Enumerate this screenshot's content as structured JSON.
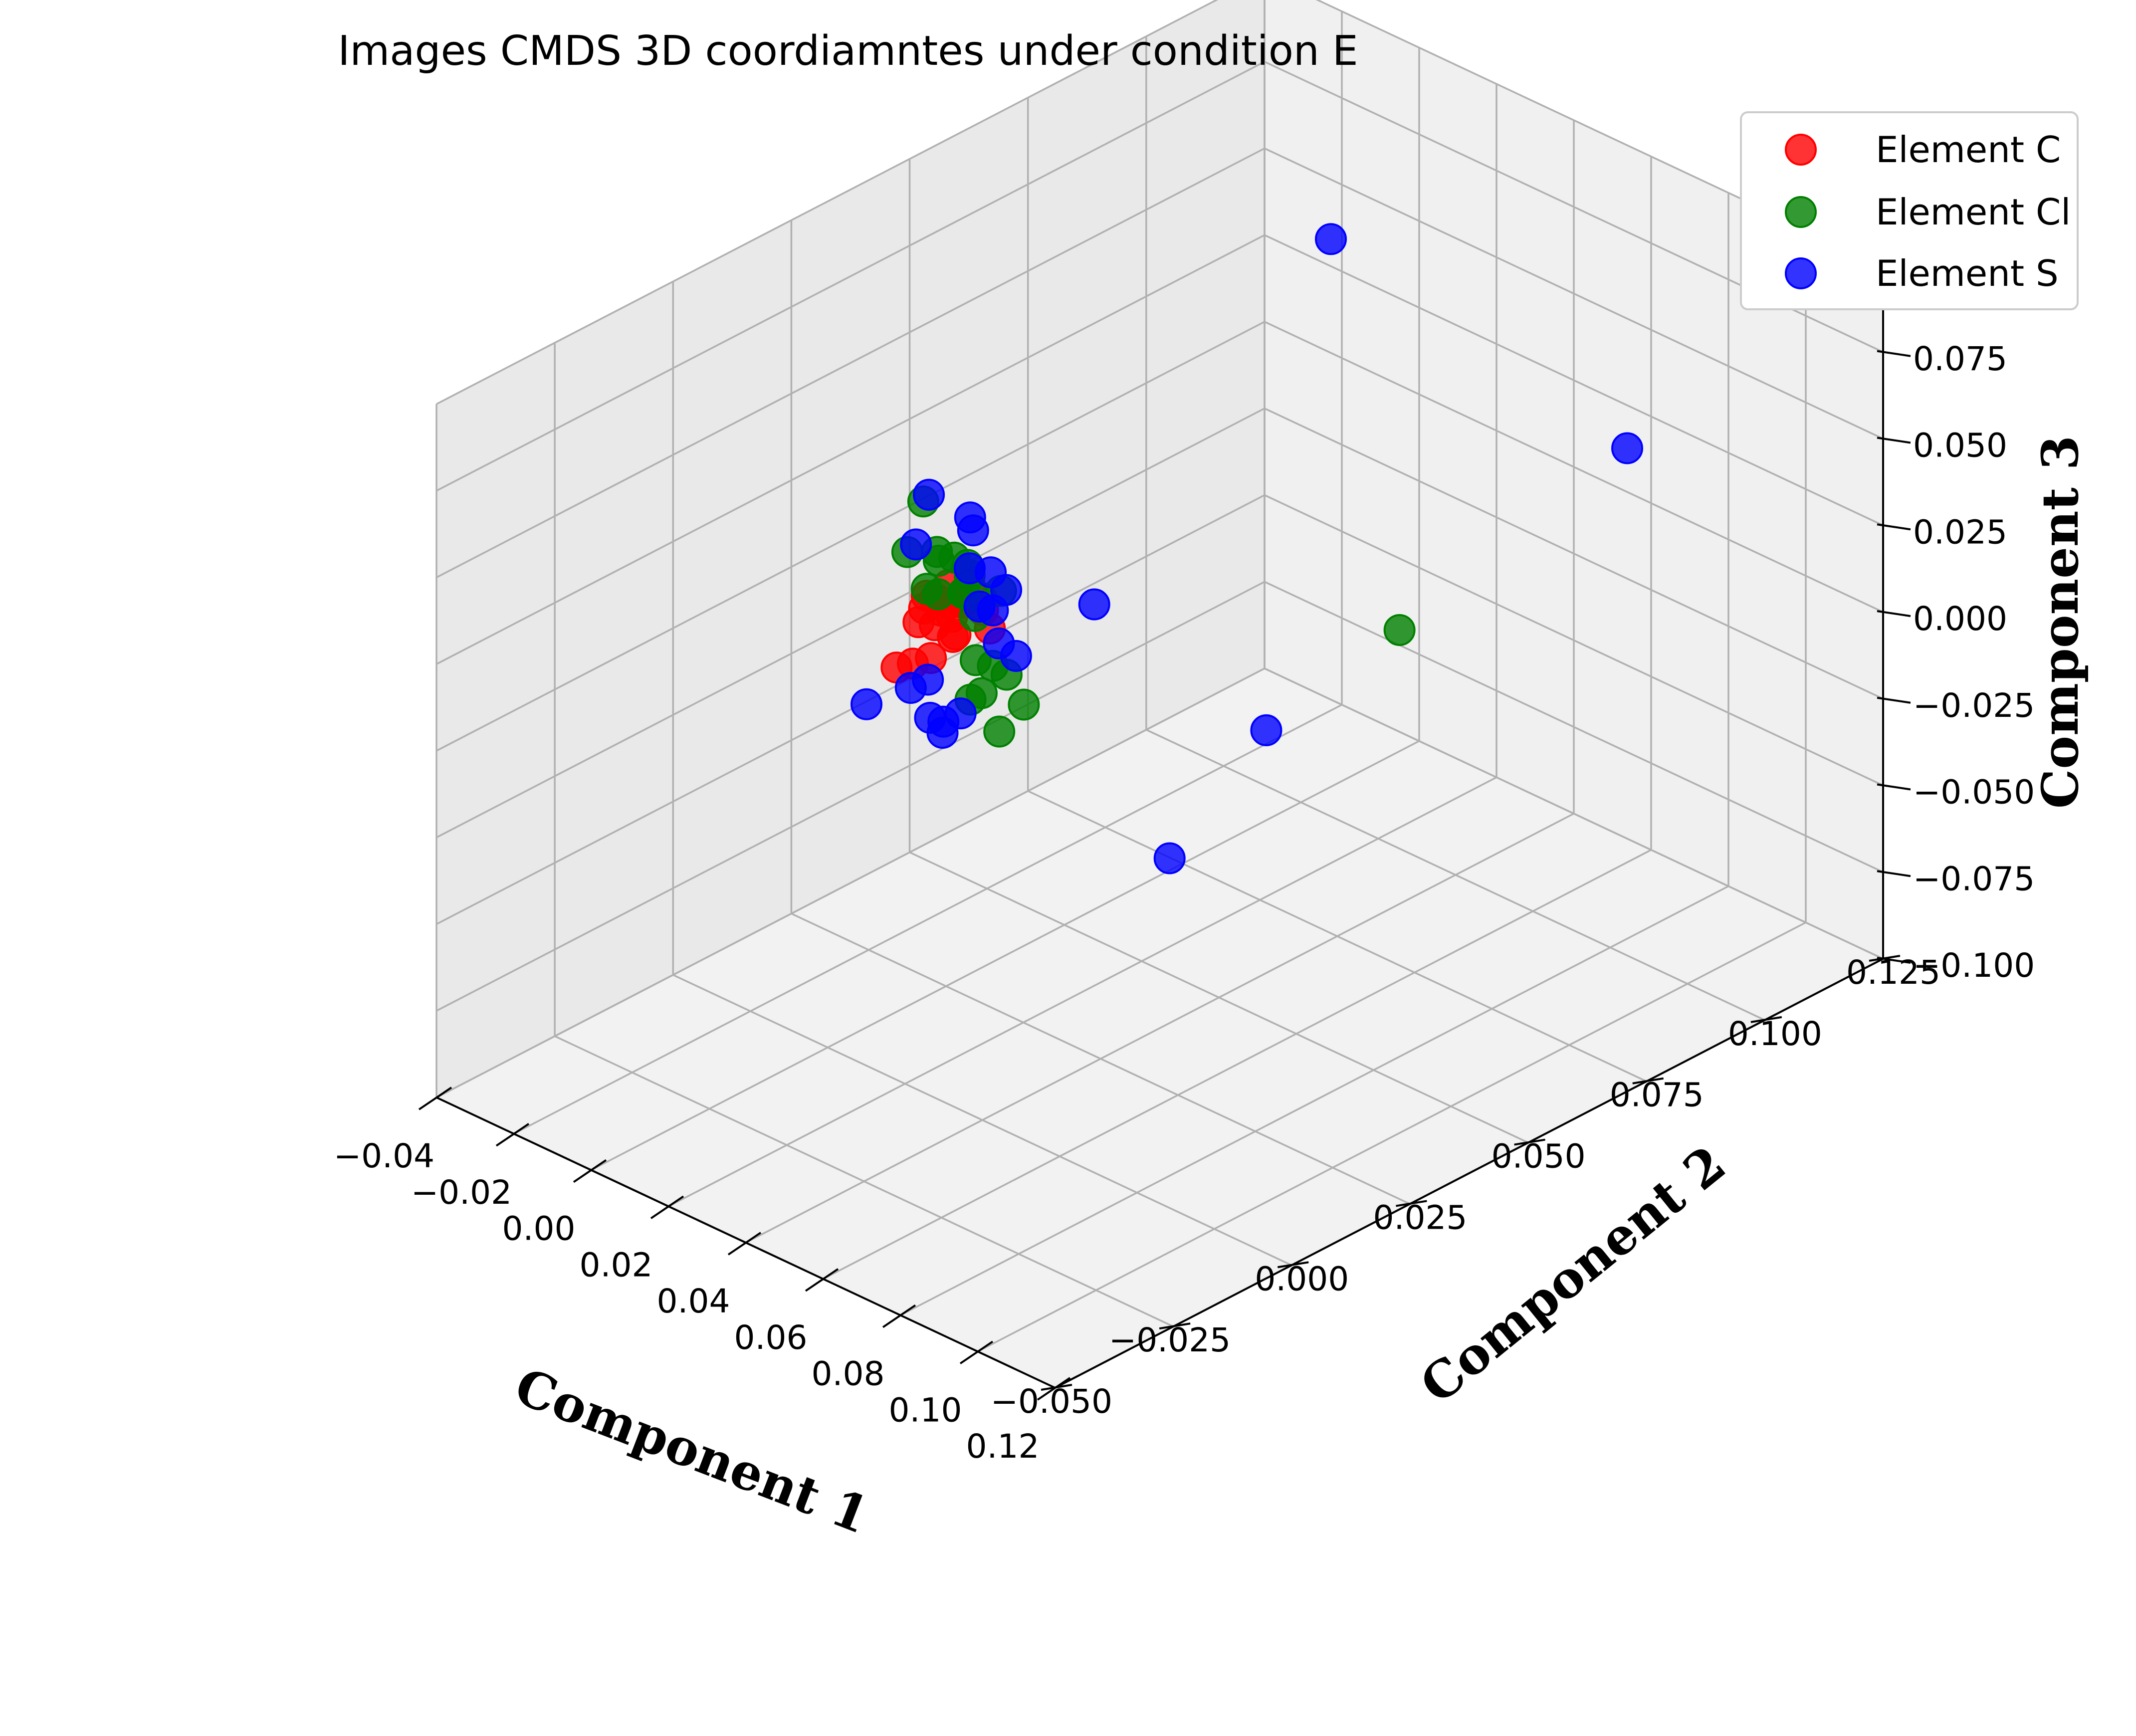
{
  "chart_data": {
    "type": "scatter",
    "projection": "3d",
    "title": "Images CMDS 3D coordiamntes under condition E",
    "xlabel": "Component 1",
    "ylabel": "Component 2",
    "zlabel": "Component 3",
    "xlim": [
      -0.04,
      0.12
    ],
    "ylim": [
      -0.05,
      0.125
    ],
    "zlim": [
      -0.1,
      0.1
    ],
    "xticks": [
      "−0.04",
      "−0.02",
      "0.00",
      "0.02",
      "0.04",
      "0.06",
      "0.08",
      "0.10",
      "0.12"
    ],
    "yticks": [
      "−0.050",
      "−0.025",
      "0.000",
      "0.025",
      "0.050",
      "0.075",
      "0.100",
      "0.125"
    ],
    "zticks": [
      "−0.100",
      "−0.075",
      "−0.050",
      "−0.025",
      "0.000",
      "0.025",
      "0.050",
      "0.075",
      "0.100"
    ],
    "grid": true,
    "legend_position": "upper right, outside plot",
    "series": [
      {
        "name": "Element C",
        "color": "#ff0000",
        "points": [
          [
            -0.005,
            0.025,
            0.01
          ],
          [
            -0.003,
            0.028,
            0.012
          ],
          [
            -0.002,
            0.022,
            0.01
          ],
          [
            0.0,
            0.03,
            0.012
          ],
          [
            0.001,
            0.025,
            0.011
          ],
          [
            0.002,
            0.027,
            0.013
          ],
          [
            -0.001,
            0.02,
            0.008
          ],
          [
            0.0,
            0.024,
            0.009
          ],
          [
            0.003,
            0.026,
            0.012
          ],
          [
            -0.004,
            0.026,
            0.009
          ],
          [
            0.004,
            0.023,
            0.01
          ],
          [
            -0.002,
            0.03,
            0.006
          ],
          [
            0.001,
            0.032,
            0.004
          ],
          [
            0.002,
            0.021,
            0.008
          ],
          [
            0.0,
            0.027,
            0.0
          ],
          [
            0.003,
            0.024,
            0.003
          ],
          [
            0.001,
            0.021,
            -0.002
          ],
          [
            -0.003,
            0.017,
            -0.004
          ],
          [
            0.004,
            0.031,
            0.001
          ],
          [
            0.0,
            0.018,
            -0.002
          ]
        ]
      },
      {
        "name": "Element Cl",
        "color": "#008000",
        "points": [
          [
            -0.012,
            0.03,
            0.03
          ],
          [
            -0.01,
            0.025,
            0.02
          ],
          [
            -0.008,
            0.03,
            0.015
          ],
          [
            -0.006,
            0.028,
            0.02
          ],
          [
            -0.005,
            0.025,
            0.012
          ],
          [
            -0.004,
            0.03,
            0.018
          ],
          [
            -0.003,
            0.032,
            0.015
          ],
          [
            -0.002,
            0.025,
            0.012
          ],
          [
            0.0,
            0.03,
            0.015
          ],
          [
            0.001,
            0.028,
            0.012
          ],
          [
            0.002,
            0.027,
            0.013
          ],
          [
            0.003,
            0.03,
            0.01
          ],
          [
            0.005,
            0.027,
            0.008
          ],
          [
            0.004,
            0.028,
            -0.006
          ],
          [
            0.008,
            0.026,
            -0.012
          ],
          [
            0.01,
            0.022,
            -0.01
          ],
          [
            0.006,
            0.03,
            -0.008
          ],
          [
            0.012,
            0.028,
            -0.006
          ],
          [
            0.014,
            0.03,
            -0.015
          ],
          [
            0.015,
            0.024,
            -0.018
          ],
          [
            0.002,
            0.035,
            0.008
          ],
          [
            0.05,
            0.08,
            -0.01
          ]
        ]
      },
      {
        "name": "Element S",
        "color": "#0000ff",
        "points": [
          [
            0.02,
            0.09,
            0.08
          ],
          [
            0.115,
            0.075,
            0.08
          ],
          [
            -0.013,
            0.032,
            0.03
          ],
          [
            -0.006,
            0.035,
            0.025
          ],
          [
            -0.004,
            0.034,
            0.023
          ],
          [
            -0.009,
            0.026,
            0.022
          ],
          [
            0.0,
            0.03,
            0.017
          ],
          [
            0.003,
            0.032,
            0.016
          ],
          [
            0.005,
            0.028,
            0.01
          ],
          [
            0.006,
            0.03,
            0.008
          ],
          [
            0.02,
            0.04,
            0.01
          ],
          [
            0.01,
            0.028,
            0.002
          ],
          [
            0.012,
            0.03,
            -0.002
          ],
          [
            -0.003,
            0.02,
            -0.012
          ],
          [
            -0.001,
            0.022,
            -0.01
          ],
          [
            -0.012,
            0.018,
            -0.02
          ],
          [
            0.002,
            0.02,
            -0.018
          ],
          [
            0.003,
            0.022,
            -0.02
          ],
          [
            0.005,
            0.024,
            -0.018
          ],
          [
            0.004,
            0.021,
            -0.022
          ],
          [
            0.04,
            0.06,
            -0.03
          ],
          [
            0.015,
            0.06,
            -0.08
          ],
          [
            0.007,
            0.032,
            0.013
          ]
        ]
      }
    ]
  }
}
